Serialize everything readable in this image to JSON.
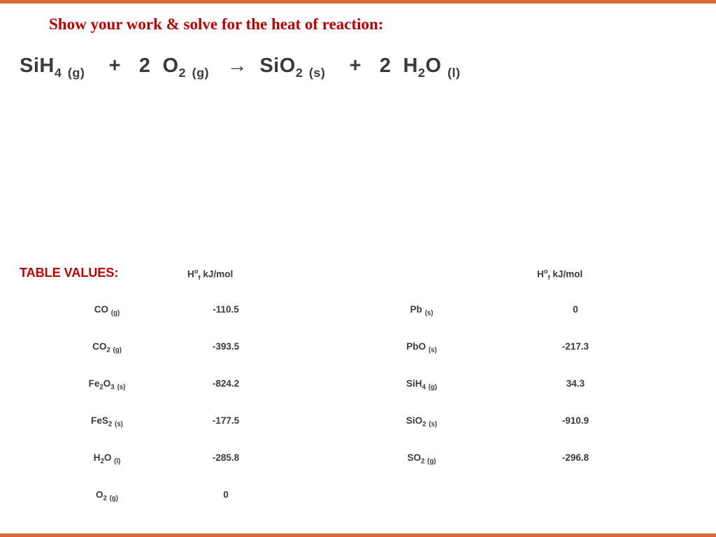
{
  "prompt": "Show your work & solve for the heat of reaction:",
  "equation": {
    "lhs1": {
      "formula": "SiH",
      "sub": "4",
      "phase": "(g)"
    },
    "plus1": "+",
    "coef2": "2",
    "lhs2": {
      "formula": "O",
      "sub": "2",
      "phase": "(g)"
    },
    "arrow": "→",
    "rhs1": {
      "formula": "SiO",
      "sub": "2",
      "phase": "(s)"
    },
    "plus2": "+",
    "coef4": "2",
    "rhs2": {
      "formula": "H",
      "sub": "2",
      "post": "O",
      "phase": "(l)"
    }
  },
  "table": {
    "title": "TABLE VALUES:",
    "header_left": "H",
    "header_sup": "o",
    "header_sub": "f",
    "header_unit": "  kJ/mol",
    "rows": [
      {
        "s1": "CO",
        "s1sub": "",
        "s1phase": "(g)",
        "v1": "-110.5",
        "s2": "Pb",
        "s2sub": "",
        "s2phase": "(s)",
        "v2": "0"
      },
      {
        "s1": "CO",
        "s1sub": "2",
        "s1phase": "(g)",
        "v1": "-393.5",
        "s2": "PbO",
        "s2sub": "",
        "s2phase": "(s)",
        "v2": "-217.3"
      },
      {
        "s1": "Fe",
        "s1sub": "2",
        "s1post": "O",
        "s1sub2": "3",
        "s1phase": "(s)",
        "v1": "-824.2",
        "s2": "SiH",
        "s2sub": "4",
        "s2phase": "(g)",
        "v2": "34.3"
      },
      {
        "s1": "FeS",
        "s1sub": "2",
        "s1phase": "(s)",
        "v1": "-177.5",
        "s2": "SiO",
        "s2sub": "2",
        "s2phase": "(s)",
        "v2": "-910.9"
      },
      {
        "s1": "H",
        "s1sub": "2",
        "s1post": "O",
        "s1phase": "(l)",
        "v1": "-285.8",
        "s2": "SO",
        "s2sub": "2",
        "s2phase": "(g)",
        "v2": "-296.8"
      },
      {
        "s1": "O",
        "s1sub": "2",
        "s1phase": "(g)",
        "v1": "0",
        "s2": "",
        "s2sub": "",
        "s2phase": "",
        "v2": ""
      }
    ]
  },
  "colors": {
    "accent": "#c00000",
    "border": "#d86a3a",
    "text": "#3a3a3a",
    "bg": "#ffffff"
  }
}
